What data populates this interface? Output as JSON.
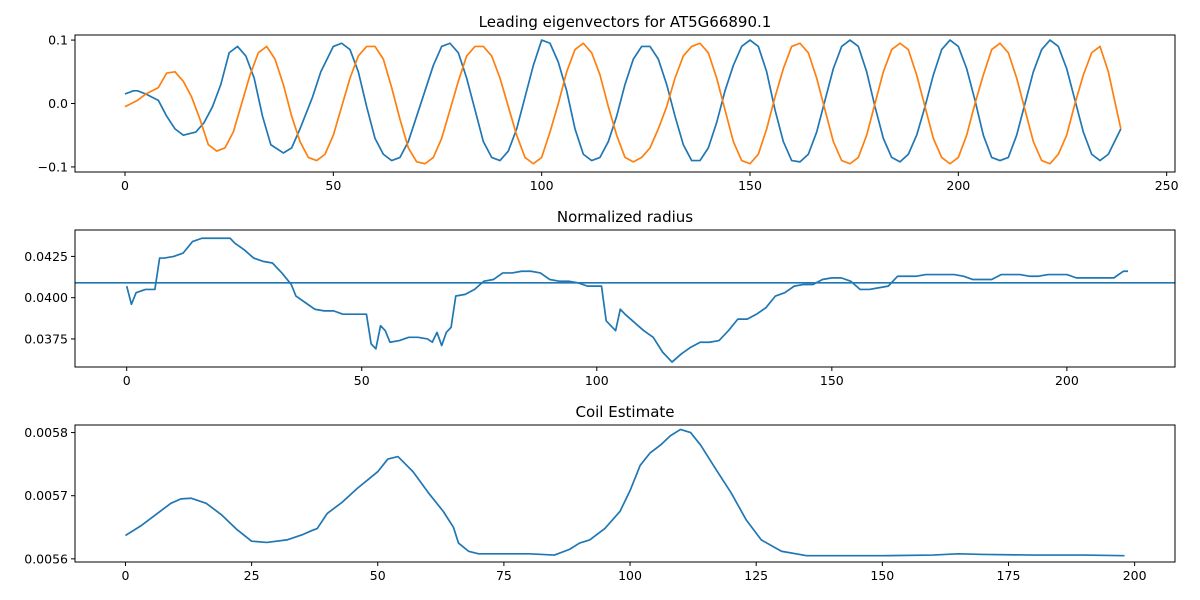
{
  "chart_data": [
    {
      "type": "line",
      "title": "Leading eigenvectors for AT5G66890.1",
      "xlabel": "",
      "ylabel": "",
      "xlim": [
        -12,
        252
      ],
      "ylim": [
        -0.108,
        0.108
      ],
      "xticks": [
        0,
        50,
        100,
        150,
        200,
        250
      ],
      "yticks": [
        -0.1,
        0.0,
        0.1
      ],
      "xtick_labels": [
        "0",
        "50",
        "100",
        "150",
        "200",
        "250"
      ],
      "ytick_labels": [
        "−0.1",
        "0.0",
        "0.1"
      ],
      "grid": false,
      "colors": [
        "#1f77b4",
        "#ff7f0e"
      ],
      "series": [
        {
          "x": [
            0,
            2,
            3,
            5,
            8,
            10,
            12,
            14,
            17,
            19,
            21,
            23,
            25,
            27,
            29,
            31,
            33,
            35,
            38,
            40,
            42,
            45,
            47,
            50,
            52,
            54,
            56,
            58,
            60,
            62,
            64,
            66,
            68,
            70,
            72,
            74,
            76,
            78,
            80,
            82,
            84,
            86,
            88,
            90,
            92,
            94,
            96,
            98,
            100,
            102,
            104,
            106,
            108,
            110,
            112,
            114,
            116,
            118,
            120,
            122,
            124,
            126,
            128,
            130,
            132,
            134,
            136,
            138,
            140,
            142,
            144,
            146,
            148,
            150,
            152,
            154,
            156,
            158,
            160,
            162,
            164,
            166,
            168,
            170,
            172,
            174,
            176,
            178,
            180,
            182,
            184,
            186,
            188,
            190,
            192,
            194,
            196,
            198,
            200,
            202,
            204,
            206,
            208,
            210,
            212,
            214,
            216,
            218,
            220,
            222,
            224,
            226,
            228,
            230,
            232,
            234,
            236,
            239
          ],
          "y": [
            0.015,
            0.02,
            0.02,
            0.015,
            0.005,
            -0.02,
            -0.04,
            -0.05,
            -0.045,
            -0.03,
            -0.005,
            0.03,
            0.08,
            0.09,
            0.075,
            0.04,
            -0.02,
            -0.065,
            -0.078,
            -0.07,
            -0.04,
            0.01,
            0.05,
            0.09,
            0.095,
            0.085,
            0.05,
            -0.005,
            -0.055,
            -0.08,
            -0.09,
            -0.085,
            -0.06,
            -0.02,
            0.02,
            0.06,
            0.09,
            0.095,
            0.08,
            0.04,
            -0.01,
            -0.06,
            -0.085,
            -0.09,
            -0.075,
            -0.04,
            0.01,
            0.06,
            0.1,
            0.095,
            0.065,
            0.02,
            -0.04,
            -0.08,
            -0.09,
            -0.085,
            -0.06,
            -0.02,
            0.03,
            0.07,
            0.09,
            0.09,
            0.07,
            0.03,
            -0.02,
            -0.065,
            -0.09,
            -0.09,
            -0.07,
            -0.03,
            0.02,
            0.06,
            0.09,
            0.1,
            0.09,
            0.05,
            -0.01,
            -0.06,
            -0.09,
            -0.092,
            -0.08,
            -0.045,
            0.005,
            0.055,
            0.09,
            0.1,
            0.09,
            0.05,
            -0.005,
            -0.055,
            -0.085,
            -0.092,
            -0.08,
            -0.05,
            -0.005,
            0.045,
            0.085,
            0.1,
            0.09,
            0.055,
            0.005,
            -0.05,
            -0.085,
            -0.09,
            -0.085,
            -0.05,
            0.0,
            0.05,
            0.085,
            0.1,
            0.09,
            0.055,
            0.005,
            -0.045,
            -0.08,
            -0.09,
            -0.08,
            -0.04
          ]
        },
        {
          "x": [
            0,
            3,
            5,
            8,
            10,
            12,
            14,
            16,
            18,
            20,
            22,
            24,
            26,
            28,
            30,
            32,
            34,
            36,
            38,
            40,
            42,
            44,
            46,
            48,
            50,
            52,
            54,
            56,
            58,
            60,
            62,
            64,
            66,
            68,
            70,
            72,
            74,
            76,
            78,
            80,
            82,
            84,
            86,
            88,
            90,
            92,
            94,
            96,
            98,
            100,
            102,
            104,
            106,
            108,
            110,
            112,
            114,
            116,
            118,
            120,
            122,
            124,
            126,
            128,
            130,
            132,
            134,
            136,
            138,
            140,
            142,
            144,
            146,
            148,
            150,
            152,
            154,
            156,
            158,
            160,
            162,
            164,
            166,
            168,
            170,
            172,
            174,
            176,
            178,
            180,
            182,
            184,
            186,
            188,
            190,
            192,
            194,
            196,
            198,
            200,
            202,
            204,
            206,
            208,
            210,
            212,
            214,
            216,
            218,
            220,
            222,
            224,
            226,
            228,
            230,
            232,
            234,
            236,
            239
          ],
          "y": [
            -0.005,
            0.005,
            0.015,
            0.025,
            0.048,
            0.05,
            0.035,
            0.01,
            -0.025,
            -0.065,
            -0.075,
            -0.07,
            -0.045,
            0.0,
            0.045,
            0.08,
            0.09,
            0.07,
            0.03,
            -0.02,
            -0.06,
            -0.085,
            -0.09,
            -0.08,
            -0.05,
            -0.005,
            0.04,
            0.075,
            0.09,
            0.09,
            0.07,
            0.025,
            -0.025,
            -0.07,
            -0.092,
            -0.095,
            -0.085,
            -0.055,
            -0.01,
            0.035,
            0.075,
            0.09,
            0.09,
            0.075,
            0.04,
            -0.005,
            -0.05,
            -0.085,
            -0.095,
            -0.085,
            -0.045,
            0.0,
            0.05,
            0.085,
            0.095,
            0.08,
            0.045,
            -0.005,
            -0.05,
            -0.085,
            -0.092,
            -0.085,
            -0.07,
            -0.04,
            -0.005,
            0.04,
            0.075,
            0.09,
            0.095,
            0.08,
            0.04,
            -0.01,
            -0.06,
            -0.09,
            -0.095,
            -0.08,
            -0.04,
            0.01,
            0.055,
            0.09,
            0.095,
            0.08,
            0.04,
            -0.01,
            -0.06,
            -0.09,
            -0.095,
            -0.085,
            -0.05,
            0.0,
            0.05,
            0.085,
            0.095,
            0.085,
            0.045,
            -0.005,
            -0.055,
            -0.085,
            -0.095,
            -0.085,
            -0.05,
            0.0,
            0.045,
            0.085,
            0.095,
            0.08,
            0.04,
            -0.01,
            -0.06,
            -0.09,
            -0.095,
            -0.08,
            -0.05,
            0.0,
            0.045,
            0.08,
            0.09,
            0.05,
            -0.04
          ]
        }
      ]
    },
    {
      "type": "line",
      "title": "Normalized radius",
      "xlabel": "",
      "ylabel": "",
      "xlim": [
        -11,
        223
      ],
      "ylim": [
        0.0358,
        0.0441
      ],
      "xticks": [
        0,
        50,
        100,
        150,
        200
      ],
      "yticks": [
        0.0375,
        0.04,
        0.0425
      ],
      "xtick_labels": [
        "0",
        "50",
        "100",
        "150",
        "200"
      ],
      "ytick_labels": [
        "0.0375",
        "0.0400",
        "0.0425"
      ],
      "grid": false,
      "colors": [
        "#1f77b4"
      ],
      "hline": 0.0409,
      "series": [
        {
          "x": [
            0,
            1,
            2,
            4,
            6,
            7,
            8,
            10,
            12,
            14,
            16,
            18,
            20,
            22,
            23,
            25,
            27,
            29,
            31,
            33,
            35,
            36,
            38,
            40,
            42,
            44,
            46,
            48,
            50,
            51,
            52,
            53,
            54,
            55,
            56,
            58,
            60,
            62,
            64,
            65,
            66,
            67,
            68,
            69,
            70,
            72,
            74,
            76,
            78,
            80,
            82,
            84,
            86,
            88,
            90,
            92,
            94,
            96,
            98,
            100,
            101,
            102,
            104,
            105,
            106,
            108,
            110,
            112,
            114,
            116,
            118,
            120,
            122,
            124,
            126,
            128,
            130,
            132,
            134,
            136,
            138,
            140,
            142,
            144,
            146,
            148,
            150,
            152,
            154,
            156,
            158,
            160,
            162,
            164,
            166,
            168,
            170,
            172,
            174,
            176,
            178,
            180,
            182,
            184,
            186,
            188,
            190,
            192,
            194,
            196,
            198,
            200,
            202,
            204,
            206,
            208,
            210,
            212,
            213
          ],
          "y": [
            0.0407,
            0.0396,
            0.0403,
            0.0405,
            0.0405,
            0.0424,
            0.0424,
            0.0425,
            0.0427,
            0.0434,
            0.0436,
            0.0436,
            0.0436,
            0.0436,
            0.0433,
            0.0429,
            0.0424,
            0.0422,
            0.0421,
            0.0415,
            0.0408,
            0.0401,
            0.0397,
            0.0393,
            0.0392,
            0.0392,
            0.039,
            0.039,
            0.039,
            0.039,
            0.0372,
            0.0369,
            0.0383,
            0.038,
            0.0373,
            0.0374,
            0.0376,
            0.0376,
            0.0375,
            0.0373,
            0.0379,
            0.0371,
            0.0379,
            0.0382,
            0.0401,
            0.0402,
            0.0405,
            0.041,
            0.0411,
            0.0415,
            0.0415,
            0.0416,
            0.0416,
            0.0415,
            0.0411,
            0.041,
            0.041,
            0.0409,
            0.0407,
            0.0407,
            0.0407,
            0.0386,
            0.038,
            0.0393,
            0.039,
            0.0385,
            0.038,
            0.0376,
            0.0367,
            0.0361,
            0.0366,
            0.037,
            0.0373,
            0.0373,
            0.0374,
            0.038,
            0.0387,
            0.0387,
            0.039,
            0.0394,
            0.0401,
            0.0403,
            0.0407,
            0.0408,
            0.0408,
            0.0411,
            0.0412,
            0.0412,
            0.041,
            0.0405,
            0.0405,
            0.0406,
            0.0407,
            0.0413,
            0.0413,
            0.0413,
            0.0414,
            0.0414,
            0.0414,
            0.0414,
            0.0413,
            0.0411,
            0.0411,
            0.0411,
            0.0414,
            0.0414,
            0.0414,
            0.0413,
            0.0413,
            0.0414,
            0.0414,
            0.0414,
            0.0412,
            0.0412,
            0.0412,
            0.0412,
            0.0412,
            0.0416,
            0.0416
          ]
        }
      ]
    },
    {
      "type": "line",
      "title": "Coil Estimate",
      "xlabel": "",
      "ylabel": "",
      "xlim": [
        -10,
        208
      ],
      "ylim": [
        0.005595,
        0.005812
      ],
      "xticks": [
        0,
        25,
        50,
        75,
        100,
        125,
        150,
        175,
        200
      ],
      "yticks": [
        0.0056,
        0.0057,
        0.0058
      ],
      "xtick_labels": [
        "0",
        "25",
        "50",
        "75",
        "100",
        "125",
        "150",
        "175",
        "200"
      ],
      "ytick_labels": [
        "0.0056",
        "0.0057",
        "0.0058"
      ],
      "grid": false,
      "colors": [
        "#1f77b4"
      ],
      "series": [
        {
          "x": [
            0,
            3,
            6,
            9,
            11,
            13,
            16,
            19,
            22,
            25,
            28,
            32,
            35,
            37,
            38,
            40,
            43,
            46,
            48,
            50,
            52,
            54,
            57,
            60,
            63,
            65,
            66,
            68,
            70,
            75,
            80,
            85,
            88,
            90,
            92,
            95,
            98,
            100,
            102,
            104,
            106,
            108,
            110,
            112,
            114,
            117,
            120,
            123,
            126,
            130,
            135,
            140,
            150,
            160,
            165,
            170,
            180,
            190,
            198
          ],
          "y": [
            0.005637,
            0.005652,
            0.00567,
            0.005688,
            0.005695,
            0.005696,
            0.005688,
            0.00567,
            0.005647,
            0.005628,
            0.005626,
            0.00563,
            0.005638,
            0.005645,
            0.005648,
            0.005672,
            0.00569,
            0.005712,
            0.005725,
            0.005738,
            0.005758,
            0.005762,
            0.005738,
            0.005705,
            0.005675,
            0.00565,
            0.005625,
            0.005612,
            0.005608,
            0.005608,
            0.005608,
            0.005606,
            0.005615,
            0.005625,
            0.00563,
            0.005648,
            0.005675,
            0.005708,
            0.005748,
            0.005768,
            0.00578,
            0.005795,
            0.005805,
            0.0058,
            0.00578,
            0.005742,
            0.005705,
            0.005662,
            0.00563,
            0.005612,
            0.005605,
            0.005605,
            0.005605,
            0.005606,
            0.005608,
            0.005607,
            0.005606,
            0.005606,
            0.005605
          ]
        }
      ]
    }
  ]
}
